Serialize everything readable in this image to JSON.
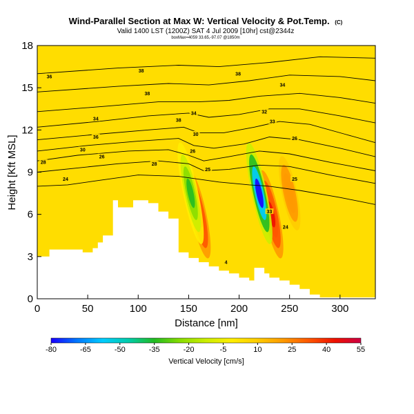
{
  "chart_data": {
    "type": "heatmap",
    "title": "Wind-Parallel Section at Max W: Vertical Velocity & Pot.Temp.",
    "title_mark": "(C)",
    "subtitle": "Valid 1400 LST (1200Z) SAT 4 Jul 2009 [10hr] cst@2344z",
    "subtitle_small": "boxMax=4059 33.65,-97.07 @1850m",
    "xlabel": "Distance [nm]",
    "ylabel": "Height [Kft MSL]",
    "xlim": [
      0,
      335
    ],
    "ylim": [
      0,
      18
    ],
    "xticks": [
      "0",
      "50",
      "100",
      "150",
      "200",
      "250",
      "300"
    ],
    "yticks": [
      "0",
      "3",
      "6",
      "9",
      "12",
      "15",
      "18"
    ],
    "colorbar": {
      "label": "Vertical Velocity [cm/s]",
      "ticks": [
        "-80",
        "-65",
        "-50",
        "-35",
        "-20",
        "-5",
        "10",
        "25",
        "40",
        "55"
      ],
      "colors": [
        "#1a00ff",
        "#0077ff",
        "#00ccff",
        "#00ccaa",
        "#22bb22",
        "#88dd00",
        "#ccee00",
        "#ffee00",
        "#ffcc00",
        "#ff9900",
        "#ff5500",
        "#ee1100",
        "#cc0044"
      ]
    },
    "background_value": 10,
    "background_color": "#ffdd00",
    "updraft_cores": [
      {
        "x": 160,
        "bottom": 3,
        "top": 9,
        "peak": 45
      },
      {
        "x": 232,
        "bottom": 3,
        "top": 9,
        "peak": 45
      },
      {
        "x": 250,
        "bottom": 5,
        "top": 10,
        "peak": 25
      }
    ],
    "downdraft_cores": [
      {
        "x": 152,
        "bottom": 4,
        "top": 11,
        "peak": -30
      },
      {
        "x": 220,
        "bottom": 4,
        "top": 11,
        "peak": -80
      }
    ],
    "terrain": [
      [
        0,
        3.0
      ],
      [
        12,
        3.0
      ],
      [
        12,
        3.5
      ],
      [
        45,
        3.5
      ],
      [
        45,
        3.3
      ],
      [
        55,
        3.3
      ],
      [
        55,
        3.6
      ],
      [
        60,
        3.6
      ],
      [
        60,
        4.0
      ],
      [
        65,
        4.0
      ],
      [
        65,
        4.5
      ],
      [
        75,
        4.5
      ],
      [
        75,
        7.0
      ],
      [
        80,
        7.0
      ],
      [
        80,
        6.5
      ],
      [
        95,
        6.5
      ],
      [
        95,
        7.0
      ],
      [
        110,
        7.0
      ],
      [
        110,
        6.8
      ],
      [
        120,
        6.8
      ],
      [
        120,
        6.2
      ],
      [
        130,
        6.2
      ],
      [
        130,
        5.7
      ],
      [
        140,
        5.7
      ],
      [
        140,
        3.3
      ],
      [
        150,
        3.3
      ],
      [
        150,
        2.9
      ],
      [
        160,
        2.9
      ],
      [
        160,
        2.6
      ],
      [
        170,
        2.6
      ],
      [
        170,
        2.3
      ],
      [
        180,
        2.3
      ],
      [
        180,
        2.0
      ],
      [
        190,
        2.0
      ],
      [
        190,
        1.8
      ],
      [
        200,
        1.8
      ],
      [
        200,
        1.5
      ],
      [
        210,
        1.5
      ],
      [
        210,
        1.3
      ],
      [
        215,
        1.3
      ],
      [
        215,
        2.2
      ],
      [
        225,
        2.2
      ],
      [
        225,
        1.8
      ],
      [
        230,
        1.8
      ],
      [
        230,
        1.5
      ],
      [
        240,
        1.5
      ],
      [
        240,
        1.3
      ],
      [
        250,
        1.3
      ],
      [
        250,
        1.0
      ],
      [
        260,
        1.0
      ],
      [
        260,
        0.7
      ],
      [
        270,
        0.7
      ],
      [
        270,
        0.3
      ],
      [
        280,
        0.3
      ],
      [
        280,
        0.1
      ],
      [
        335,
        0.1
      ]
    ],
    "isentropes": [
      {
        "label": "24",
        "points": [
          [
            0,
            8.0
          ],
          [
            30,
            8.1
          ],
          [
            60,
            8.4
          ],
          [
            100,
            8.8
          ],
          [
            140,
            8.7
          ],
          [
            160,
            8.5
          ],
          [
            180,
            8.3
          ],
          [
            210,
            8.1
          ],
          [
            230,
            8.0
          ],
          [
            260,
            7.7
          ],
          [
            300,
            7.2
          ],
          [
            335,
            6.7
          ]
        ]
      },
      {
        "label": "26",
        "points": [
          [
            0,
            9.0
          ],
          [
            40,
            9.3
          ],
          [
            80,
            9.6
          ],
          [
            120,
            9.8
          ],
          [
            150,
            9.6
          ],
          [
            165,
            9.1
          ],
          [
            190,
            9.2
          ],
          [
            220,
            9.5
          ],
          [
            250,
            9.4
          ],
          [
            290,
            8.8
          ],
          [
            335,
            8.2
          ]
        ]
      },
      {
        "label": "28",
        "points": [
          [
            0,
            9.8
          ],
          [
            40,
            10.2
          ],
          [
            90,
            10.5
          ],
          [
            130,
            10.6
          ],
          [
            150,
            10.2
          ],
          [
            165,
            9.8
          ],
          [
            190,
            10.1
          ],
          [
            220,
            10.5
          ],
          [
            250,
            10.3
          ],
          [
            290,
            9.7
          ],
          [
            335,
            9.1
          ]
        ]
      },
      {
        "label": "30",
        "points": [
          [
            0,
            10.5
          ],
          [
            50,
            10.9
          ],
          [
            100,
            11.2
          ],
          [
            140,
            11.4
          ],
          [
            155,
            10.9
          ],
          [
            175,
            10.7
          ],
          [
            205,
            11.0
          ],
          [
            230,
            11.5
          ],
          [
            260,
            11.3
          ],
          [
            300,
            10.7
          ],
          [
            335,
            10.1
          ]
        ]
      },
      {
        "label": "32",
        "points": [
          [
            0,
            11.3
          ],
          [
            60,
            11.7
          ],
          [
            110,
            12.0
          ],
          [
            145,
            12.2
          ],
          [
            160,
            11.8
          ],
          [
            185,
            11.8
          ],
          [
            215,
            12.2
          ],
          [
            240,
            12.6
          ],
          [
            270,
            12.4
          ],
          [
            305,
            11.7
          ],
          [
            335,
            11.1
          ]
        ]
      },
      {
        "label": "34",
        "points": [
          [
            0,
            12.2
          ],
          [
            60,
            12.6
          ],
          [
            110,
            13.0
          ],
          [
            150,
            13.2
          ],
          [
            170,
            12.9
          ],
          [
            200,
            13.1
          ],
          [
            230,
            13.5
          ],
          [
            260,
            13.5
          ],
          [
            300,
            13.0
          ],
          [
            335,
            12.5
          ]
        ]
      },
      {
        "label": "35",
        "points": [
          [
            0,
            13.3
          ],
          [
            70,
            13.7
          ],
          [
            120,
            14.0
          ],
          [
            160,
            14.0
          ],
          [
            190,
            14.1
          ],
          [
            220,
            14.4
          ],
          [
            260,
            14.6
          ],
          [
            300,
            14.3
          ],
          [
            335,
            13.9
          ]
        ]
      },
      {
        "label": "36",
        "points": [
          [
            0,
            14.7
          ],
          [
            80,
            15.1
          ],
          [
            130,
            15.3
          ],
          [
            170,
            15.2
          ],
          [
            210,
            15.5
          ],
          [
            250,
            15.9
          ],
          [
            300,
            15.8
          ],
          [
            335,
            15.5
          ]
        ]
      },
      {
        "label": "38",
        "points": [
          [
            0,
            16.0
          ],
          [
            80,
            16.4
          ],
          [
            140,
            16.6
          ],
          [
            180,
            16.5
          ],
          [
            230,
            16.8
          ],
          [
            280,
            17.2
          ],
          [
            335,
            17.1
          ]
        ]
      }
    ],
    "contour_labels": [
      {
        "text": "36",
        "x": 12,
        "y": 15.8
      },
      {
        "text": "38",
        "x": 103,
        "y": 16.2
      },
      {
        "text": "38",
        "x": 199,
        "y": 16.0
      },
      {
        "text": "34",
        "x": 243,
        "y": 15.2
      },
      {
        "text": "38",
        "x": 109,
        "y": 14.6
      },
      {
        "text": "34",
        "x": 155,
        "y": 13.2
      },
      {
        "text": "34",
        "x": 58,
        "y": 12.8
      },
      {
        "text": "38",
        "x": 140,
        "y": 12.7
      },
      {
        "text": "32",
        "x": 225,
        "y": 13.3
      },
      {
        "text": "33",
        "x": 233,
        "y": 12.6
      },
      {
        "text": "36",
        "x": 58,
        "y": 11.5
      },
      {
        "text": "30",
        "x": 157,
        "y": 11.7
      },
      {
        "text": "30",
        "x": 45,
        "y": 10.6
      },
      {
        "text": "26",
        "x": 64,
        "y": 10.1
      },
      {
        "text": "28",
        "x": 6,
        "y": 9.7
      },
      {
        "text": "28",
        "x": 116,
        "y": 9.6
      },
      {
        "text": "26",
        "x": 154,
        "y": 10.5
      },
      {
        "text": "25",
        "x": 169,
        "y": 9.2
      },
      {
        "text": "26",
        "x": 255,
        "y": 11.4
      },
      {
        "text": "24",
        "x": 28,
        "y": 8.5
      },
      {
        "text": "25",
        "x": 255,
        "y": 8.5
      },
      {
        "text": "33",
        "x": 230,
        "y": 6.2
      },
      {
        "text": "24",
        "x": 246,
        "y": 5.1
      },
      {
        "text": "4",
        "x": 187,
        "y": 2.6
      }
    ]
  }
}
